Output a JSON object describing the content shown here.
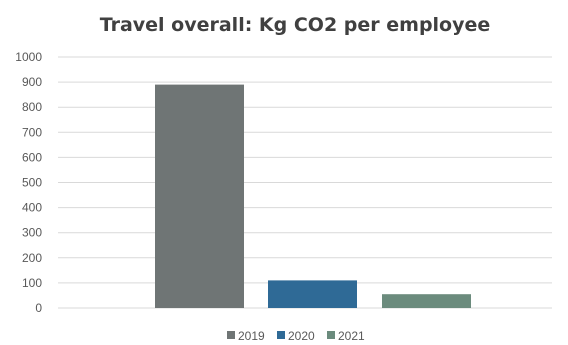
{
  "chart_data": {
    "type": "bar",
    "title": "Travel overall: Kg CO2 per employee",
    "xlabel": "",
    "ylabel": "",
    "ylim": [
      0,
      1000
    ],
    "yticks": [
      "0",
      "100",
      "200",
      "300",
      "400",
      "500",
      "600",
      "700",
      "800",
      "900",
      "1000"
    ],
    "grid": true,
    "legend_position": "bottom",
    "series": [
      {
        "name": "2019",
        "value": 890,
        "color": "#6f7575"
      },
      {
        "name": "2020",
        "value": 110,
        "color": "#2f6a96"
      },
      {
        "name": "2021",
        "value": 55,
        "color": "#6b8b7d"
      }
    ]
  }
}
